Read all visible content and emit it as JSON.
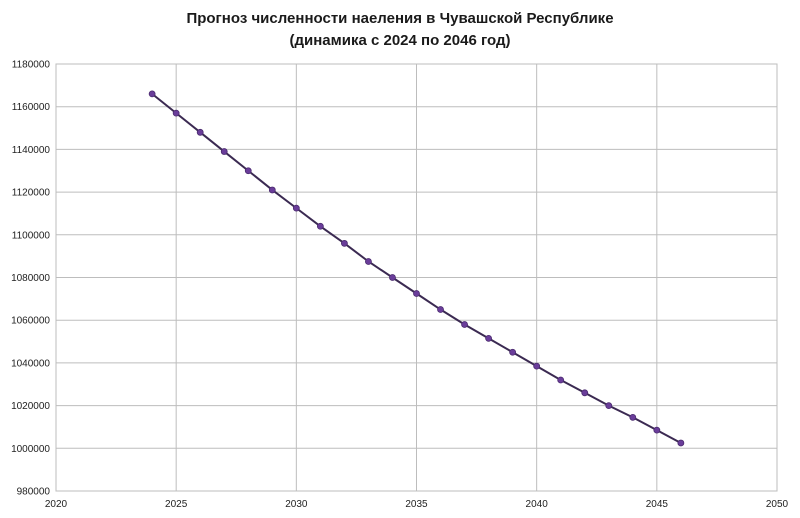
{
  "chart_data": {
    "type": "scatter",
    "title_line1": "Прогноз численности наеления в Чувашской Республике",
    "title_line2": "(динамика с 2024 по 2046 год)",
    "xlabel": "",
    "ylabel": "",
    "xlim": [
      2020,
      2050
    ],
    "ylim": [
      980000,
      1180000
    ],
    "x_ticks": [
      2020,
      2025,
      2030,
      2035,
      2040,
      2045,
      2050
    ],
    "y_ticks": [
      980000,
      1000000,
      1020000,
      1040000,
      1060000,
      1080000,
      1100000,
      1120000,
      1140000,
      1160000,
      1180000
    ],
    "grid": true,
    "legend": "none",
    "series": [
      {
        "color": "#6a3d9a",
        "line_color": "#3b2a52",
        "x": [
          2024,
          2025,
          2026,
          2027,
          2028,
          2029,
          2030,
          2031,
          2032,
          2033,
          2034,
          2035,
          2036,
          2037,
          2038,
          2039,
          2040,
          2041,
          2042,
          2043,
          2044,
          2045,
          2046
        ],
        "y": [
          1166000,
          1157000,
          1148000,
          1139000,
          1130000,
          1121000,
          1112500,
          1104000,
          1096000,
          1087500,
          1080000,
          1072500,
          1065000,
          1058000,
          1051500,
          1045000,
          1038500,
          1032000,
          1026000,
          1020000,
          1014500,
          1008500,
          1002500
        ]
      }
    ]
  }
}
